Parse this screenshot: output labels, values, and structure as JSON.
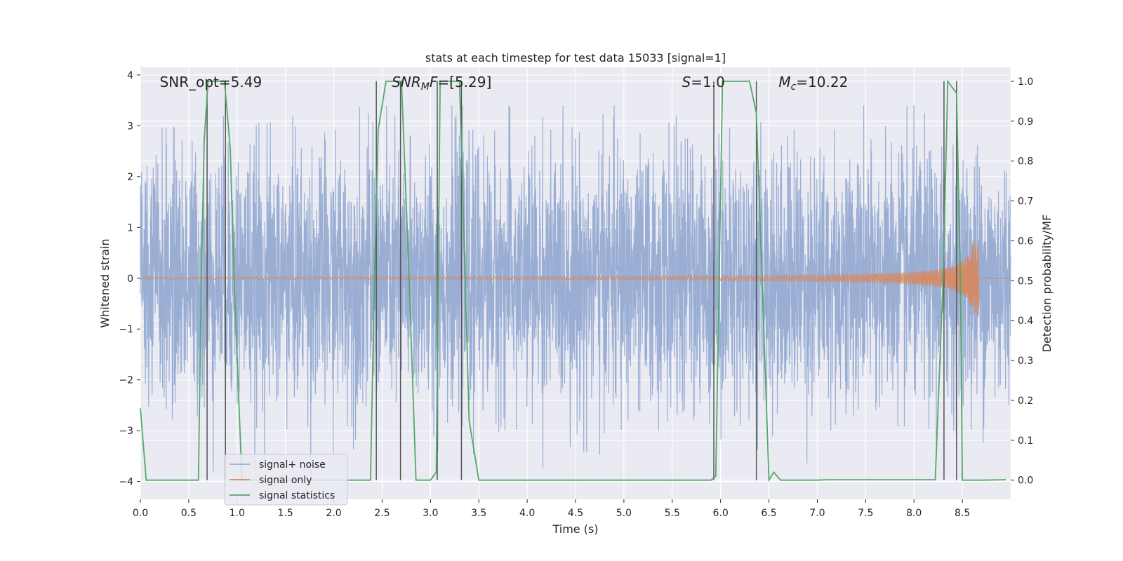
{
  "chart_data": {
    "type": "line",
    "title": "stats at each timestep for test data 15033 [signal=1]",
    "xlabel": "Time (s)",
    "ylabel": "Whitened strain",
    "y2label": "Detection probability/MF",
    "xlim": [
      0.0,
      9.0
    ],
    "ylim": [
      -4.35,
      4.15
    ],
    "y2lim": [
      -0.048,
      1.035
    ],
    "x_ticks": [
      "0.0",
      "0.5",
      "1.0",
      "1.5",
      "2.0",
      "2.5",
      "3.0",
      "3.5",
      "4.0",
      "4.5",
      "5.0",
      "5.5",
      "6.0",
      "6.5",
      "7.0",
      "7.5",
      "8.0",
      "8.5"
    ],
    "y_ticks": [
      "−4",
      "−3",
      "−2",
      "−1",
      "0",
      "1",
      "2",
      "3",
      "4"
    ],
    "y2_ticks": [
      "0.0",
      "0.1",
      "0.2",
      "0.3",
      "0.4",
      "0.5",
      "0.6",
      "0.7",
      "0.8",
      "0.9",
      "1.0"
    ],
    "grid": true,
    "legend": "lower-left",
    "colors": {
      "background": "#eaeaf2",
      "grid": "#ffffff",
      "noise": "#9aaed4",
      "signal": "#dd8452",
      "stats": "#55a868",
      "vline": "#555555"
    },
    "annotations": [
      {
        "label": "SNR_opt=5.49",
        "x": 0.2
      },
      {
        "label": "SNR_MF=[5.29]",
        "x": 2.6
      },
      {
        "label": "S=1.0",
        "x": 5.6
      },
      {
        "label": "M_c=10.22",
        "x": 6.6
      }
    ],
    "series": [
      {
        "name": "signal+ noise",
        "kind": "noise",
        "x_range": [
          0.0,
          9.0
        ],
        "typical_amplitude": 2.0,
        "max_amplitude": 3.4
      },
      {
        "name": "signal only",
        "kind": "chirp",
        "x_range": [
          0.0,
          8.67
        ],
        "start_amplitude": 0.02,
        "end_amplitude": 0.8
      },
      {
        "name": "signal statistics",
        "kind": "probability",
        "x": [
          0.0,
          0.06,
          0.12,
          0.6,
          0.63,
          0.66,
          0.7,
          0.77,
          0.87,
          0.93,
          0.97,
          1.05,
          2.3,
          2.38,
          2.42,
          2.46,
          2.54,
          2.7,
          2.78,
          2.85,
          3.0,
          3.06,
          3.1,
          3.18,
          3.3,
          3.4,
          3.5,
          5.9,
          5.95,
          6.02,
          6.1,
          6.3,
          6.37,
          6.5,
          6.55,
          6.62,
          7.0,
          7.1,
          8.22,
          8.3,
          8.35,
          8.44,
          8.48,
          8.5,
          8.54,
          8.7,
          8.95
        ],
        "values": [
          0.18,
          0.0,
          0.0,
          0.0,
          0.5,
          0.85,
          1.0,
          1.0,
          1.0,
          0.83,
          0.5,
          0.0,
          0.0,
          0.0,
          0.5,
          0.88,
          1.0,
          1.0,
          0.5,
          0.0,
          0.0,
          0.02,
          1.0,
          1.0,
          1.0,
          0.15,
          0.0,
          0.0,
          0.01,
          1.0,
          1.0,
          1.0,
          0.92,
          0.0,
          0.02,
          0.0,
          0.0,
          0.001,
          0.001,
          0.5,
          1.0,
          0.97,
          0.5,
          0.0,
          0.0,
          0.0,
          0.001
        ]
      }
    ],
    "vertical_lines": [
      0.69,
      0.88,
      2.44,
      2.69,
      3.07,
      3.32,
      5.93,
      6.37,
      8.31,
      8.44
    ]
  }
}
